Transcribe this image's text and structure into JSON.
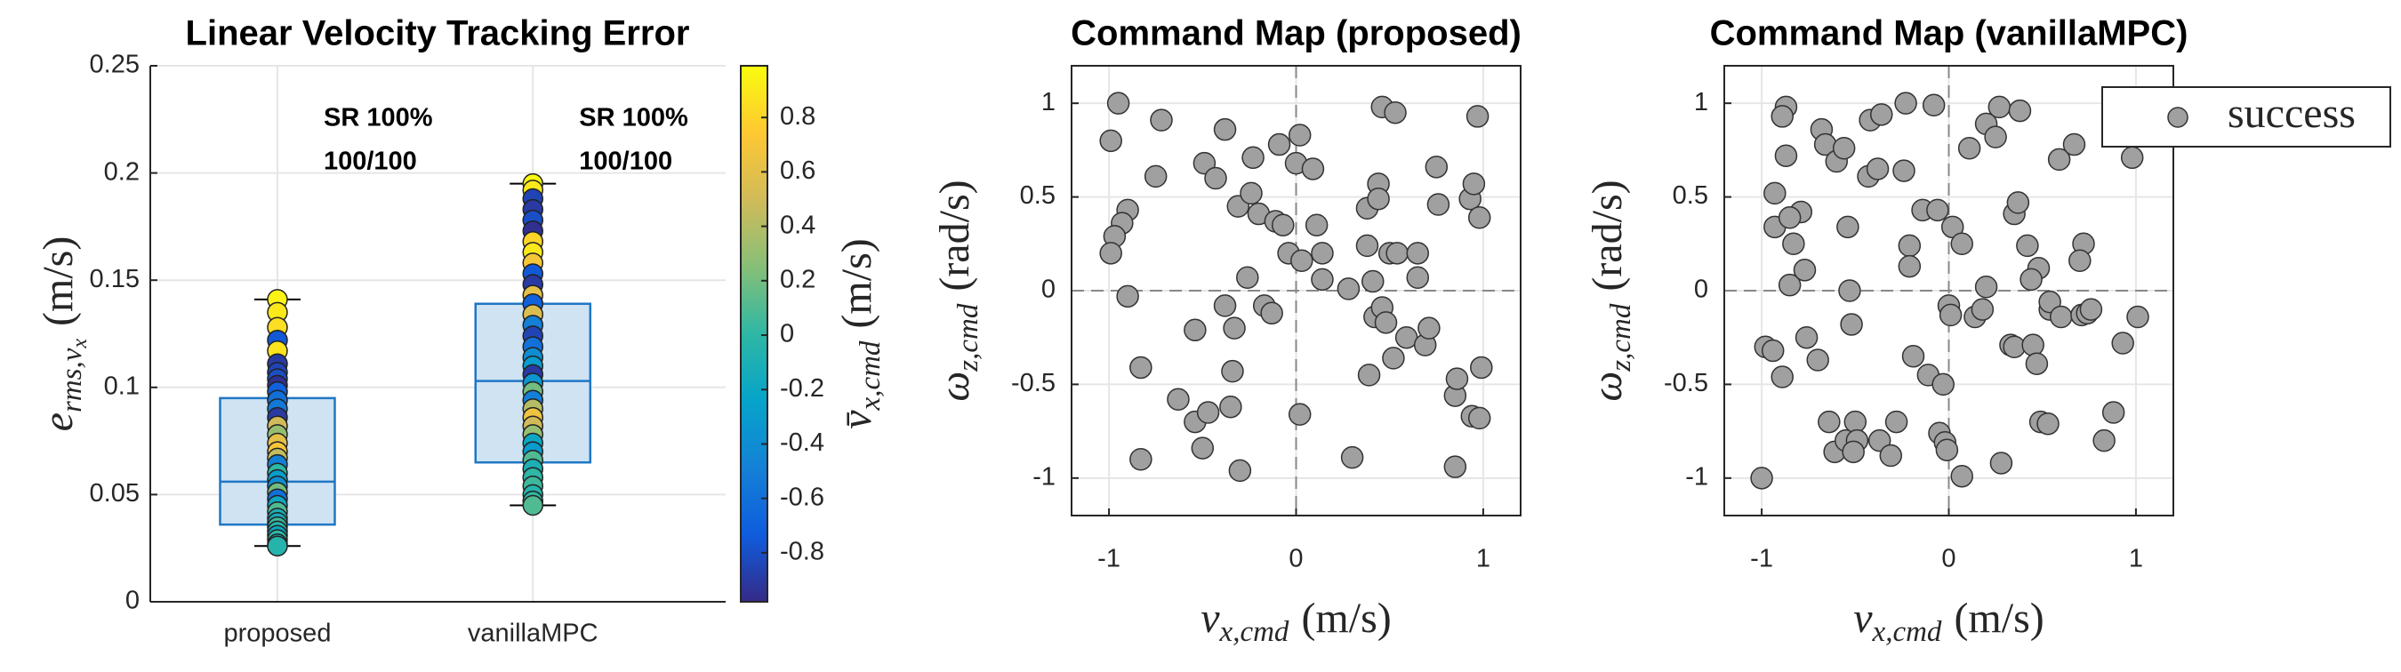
{
  "chart_data": [
    {
      "type": "box",
      "title": "Linear Velocity Tracking Error",
      "categories": [
        "proposed",
        "vanillaMPC"
      ],
      "ylim": [
        0,
        0.25
      ],
      "yticks": [
        0,
        0.05,
        0.1,
        0.15,
        0.2,
        0.25
      ],
      "grid": true,
      "ylabel": {
        "symbol": "e",
        "subscript": "rms,v",
        "subsubscript": "x",
        "unit": "(m/s)"
      },
      "annotations": [
        [
          "SR 100%",
          "100/100"
        ],
        [
          "SR 100%",
          "100/100"
        ]
      ],
      "box_color": "#1f77c4",
      "box_fill": "#cfe3f3",
      "boxes": [
        {
          "whislo": 0.026,
          "q1": 0.036,
          "med": 0.056,
          "q3": 0.095,
          "whishi": 0.141
        },
        {
          "whislo": 0.045,
          "q1": 0.065,
          "med": 0.103,
          "q3": 0.139,
          "whishi": 0.195
        }
      ],
      "points": [
        {
          "values": [
            0.141,
            0.135,
            0.128,
            0.122,
            0.117,
            0.111,
            0.107,
            0.104,
            0.101,
            0.098,
            0.094,
            0.09,
            0.086,
            0.082,
            0.078,
            0.074,
            0.07,
            0.067,
            0.064,
            0.06,
            0.057,
            0.054,
            0.051,
            0.048,
            0.045,
            0.042,
            0.039,
            0.037,
            0.035,
            0.033,
            0.031,
            0.029,
            0.027,
            0.026
          ],
          "color_values": [
            0.95,
            0.9,
            0.85,
            -0.75,
            0.88,
            -0.9,
            -0.85,
            -0.8,
            -0.95,
            -0.7,
            -0.6,
            -0.55,
            -0.9,
            0.5,
            0.3,
            0.6,
            0.7,
            0.45,
            -0.5,
            0.0,
            -0.3,
            -0.4,
            0.2,
            -0.6,
            -0.2,
            0.1,
            -0.1,
            -0.15,
            0.05,
            -0.05,
            -0.2,
            0.0,
            -0.1,
            -0.05
          ]
        },
        {
          "values": [
            0.195,
            0.192,
            0.188,
            0.183,
            0.178,
            0.173,
            0.168,
            0.163,
            0.158,
            0.153,
            0.148,
            0.143,
            0.139,
            0.134,
            0.129,
            0.124,
            0.119,
            0.114,
            0.11,
            0.106,
            0.102,
            0.098,
            0.094,
            0.09,
            0.086,
            0.082,
            0.078,
            0.074,
            0.07,
            0.066,
            0.062,
            0.058,
            0.054,
            0.05,
            0.047,
            0.045
          ],
          "color_values": [
            0.98,
            0.9,
            -0.85,
            -0.9,
            -0.8,
            -0.95,
            0.8,
            0.9,
            0.7,
            -0.75,
            -0.9,
            0.6,
            -0.7,
            0.55,
            -0.5,
            -0.85,
            -0.6,
            -0.4,
            -0.3,
            -0.9,
            -0.35,
            0.2,
            -0.5,
            0.4,
            0.65,
            0.5,
            0.3,
            -0.2,
            -0.3,
            0.1,
            -0.1,
            0.0,
            0.05,
            -0.05,
            0.0,
            0.1
          ]
        }
      ],
      "colormap": "parula",
      "clim": [
        -0.98,
        0.99
      ],
      "cticks": [
        -0.8,
        -0.6,
        -0.4,
        -0.2,
        0,
        0.2,
        0.4,
        0.6,
        0.8
      ],
      "clabel": {
        "symbol": "v̄",
        "subscript": "x,cmd",
        "unit": "(m/s)"
      }
    },
    {
      "type": "scatter",
      "title": "Command Map (proposed)",
      "xlim": [
        -1.2,
        1.2
      ],
      "ylim": [
        -1.2,
        1.2
      ],
      "xticks": [
        -1,
        0,
        1
      ],
      "yticks": [
        -1,
        -0.5,
        0,
        0.5,
        1
      ],
      "grid": true,
      "zero_lines": true,
      "xlabel": {
        "symbol": "v",
        "subscript": "x,cmd",
        "unit": "(m/s)"
      },
      "ylabel": {
        "symbol": "ω",
        "subscript": "z,cmd",
        "unit": "(rad/s)"
      },
      "series": [
        {
          "color": "#a0a0a0",
          "x": [
            -0.95,
            -0.99,
            -0.9,
            -0.93,
            -0.97,
            -0.99,
            -0.9,
            -0.83,
            -0.83,
            -0.72,
            -0.75,
            -0.63,
            -0.54,
            -0.5,
            -0.47,
            -0.38,
            -0.49,
            -0.43,
            -0.38,
            -0.33,
            -0.34,
            -0.35,
            -0.31,
            -0.54,
            -0.23,
            -0.24,
            -0.26,
            -0.2,
            -0.17,
            -0.09,
            -0.11,
            -0.07,
            -0.13,
            -0.3,
            0,
            -0.04,
            0.02,
            0.09,
            0.11,
            0.14,
            0.14,
            0.03,
            0.02,
            0.28,
            0.3,
            0.38,
            0.38,
            0.39,
            0.46,
            0.53,
            0.44,
            0.44,
            0.41,
            0.42,
            0.5,
            0.54,
            0.46,
            0.48,
            0.52,
            0.65,
            0.65,
            0.59,
            0.69,
            0.75,
            0.76,
            0.71,
            0.85,
            0.86,
            0.85,
            0.93,
            0.97,
            0.98,
            0.95,
            0.94,
            0.99,
            0.98
          ],
          "values": [
            1.0,
            0.8,
            0.43,
            0.36,
            0.29,
            0.2,
            -0.03,
            -0.41,
            -0.9,
            0.91,
            0.61,
            -0.58,
            -0.7,
            -0.84,
            -0.65,
            0.86,
            0.68,
            0.6,
            -0.08,
            -0.2,
            -0.43,
            -0.62,
            0.45,
            -0.21,
            0.71,
            0.52,
            0.07,
            0.41,
            -0.08,
            0.78,
            0.37,
            0.35,
            -0.12,
            -0.96,
            0.68,
            0.2,
            0.83,
            0.65,
            0.35,
            0.2,
            0.06,
            0.16,
            -0.66,
            0.01,
            -0.89,
            0.44,
            0.24,
            -0.45,
            0.98,
            0.95,
            0.57,
            0.49,
            0.05,
            -0.14,
            0.2,
            0.2,
            -0.09,
            -0.17,
            -0.36,
            0.2,
            0.07,
            -0.25,
            -0.29,
            0.66,
            0.46,
            -0.2,
            -0.56,
            -0.47,
            -0.94,
            0.49,
            0.93,
            0.39,
            0.57,
            -0.67,
            -0.41,
            -0.68
          ]
        }
      ]
    },
    {
      "type": "scatter",
      "title": "Command Map (vanillaMPC)",
      "xlim": [
        -1.2,
        1.2
      ],
      "ylim": [
        -1.2,
        1.2
      ],
      "xticks": [
        -1,
        0,
        1
      ],
      "yticks": [
        -1,
        -0.5,
        0,
        0.5,
        1
      ],
      "grid": true,
      "zero_lines": true,
      "legend": "northeast",
      "xlabel": {
        "symbol": "v",
        "subscript": "x,cmd",
        "unit": "(m/s)"
      },
      "ylabel": {
        "symbol": "ω",
        "subscript": "z,cmd",
        "unit": "(rad/s)"
      },
      "series": [
        {
          "name": "success",
          "color": "#a0a0a0",
          "x": [
            -1.0,
            -0.98,
            -0.94,
            -0.89,
            -0.93,
            -0.93,
            -0.87,
            -0.89,
            -0.87,
            -0.79,
            -0.85,
            -0.83,
            -0.85,
            -0.77,
            -0.76,
            -0.7,
            -0.68,
            -0.66,
            -0.6,
            -0.56,
            -0.64,
            -0.61,
            -0.55,
            -0.54,
            -0.53,
            -0.52,
            -0.5,
            -0.49,
            -0.51,
            -0.43,
            -0.42,
            -0.38,
            -0.36,
            -0.37,
            -0.31,
            -0.28,
            -0.24,
            -0.23,
            -0.21,
            -0.21,
            -0.19,
            -0.14,
            -0.11,
            -0.08,
            -0.06,
            -0.03,
            -0.05,
            -0.02,
            -0.01,
            0,
            0.01,
            0.02,
            0.07,
            0.07,
            0.11,
            0.14,
            0.2,
            0.18,
            0.2,
            0.25,
            0.27,
            0.28,
            0.33,
            0.35,
            0.35,
            0.37,
            0.38,
            0.42,
            0.48,
            0.44,
            0.45,
            0.47,
            0.49,
            0.54,
            0.53,
            0.54,
            0.59,
            0.6,
            0.67,
            0.71,
            0.72,
            0.7,
            0.74,
            0.76,
            0.83,
            0.88,
            0.93,
            0.98,
            1.01
          ],
          "values": [
            -1.0,
            -0.3,
            -0.32,
            -0.46,
            0.52,
            0.34,
            0.98,
            0.93,
            0.72,
            0.42,
            0.39,
            0.25,
            0.03,
            0.11,
            -0.25,
            -0.37,
            0.86,
            0.78,
            0.69,
            0.76,
            -0.7,
            -0.86,
            -0.8,
            0.34,
            0,
            -0.18,
            -0.7,
            -0.8,
            -0.86,
            0.61,
            0.91,
            0.65,
            0.94,
            -0.8,
            -0.88,
            -0.7,
            0.64,
            1.0,
            0.24,
            0.13,
            -0.35,
            0.43,
            -0.45,
            0.99,
            0.43,
            -0.5,
            -0.76,
            -0.81,
            -0.85,
            -0.08,
            -0.13,
            0.34,
            0.25,
            -0.99,
            0.76,
            -0.14,
            0.02,
            -0.1,
            0.89,
            0.82,
            0.98,
            -0.92,
            -0.29,
            -0.3,
            0.41,
            0.47,
            0.96,
            0.24,
            0.12,
            0.06,
            -0.29,
            -0.39,
            -0.7,
            -0.1,
            -0.71,
            -0.06,
            0.7,
            -0.14,
            0.78,
            -0.13,
            0.25,
            0.16,
            -0.12,
            -0.1,
            -0.8,
            -0.65,
            -0.28,
            0.71,
            -0.14
          ]
        }
      ]
    }
  ]
}
